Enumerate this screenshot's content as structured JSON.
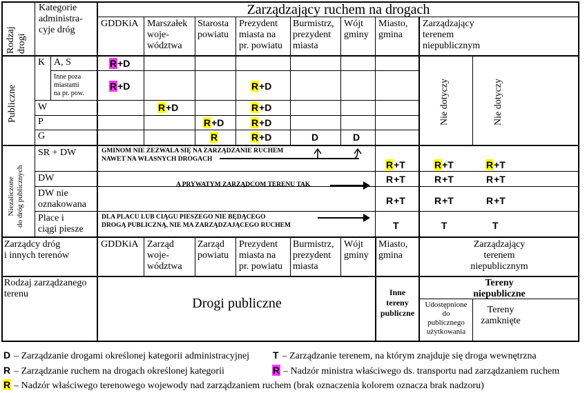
{
  "header": {
    "road_type_label": [
      "Rodzaj",
      "drogi"
    ],
    "admin_category_label": [
      "Kategorie",
      "administra-",
      "cyje dróg"
    ],
    "traffic_manager_title": "Zarządzający ruchem na drogach",
    "columns": {
      "gddkia": "GDDKiA",
      "marszalek": [
        "Marszałek",
        "woje-",
        "wództwa"
      ],
      "starosta": [
        "Starosta",
        "powiatu"
      ],
      "prezydent": [
        "Prezydent",
        "miasta na",
        "pr. powiatu"
      ],
      "burmistrz": [
        "Burmistrz,",
        "prezydent",
        "miasta"
      ],
      "wojt": [
        "Wójt",
        "gminy"
      ],
      "miasto": [
        "Miasto,",
        "gmina"
      ],
      "niepubliczny": [
        "Zarządzający",
        "terenem",
        "niepublicznym"
      ]
    }
  },
  "public_roads": {
    "group_label": "Publiczne",
    "k_label": "K",
    "as_label": "A, S",
    "inne_label": [
      "Inne poza",
      "miastami",
      "na pr. pow."
    ],
    "w_label": "W",
    "p_label": "P",
    "g_label": "G",
    "nie_dotyczy": "Nie dotyczy",
    "code_rd": "+D",
    "code_r_letter": "R",
    "code_d": "D"
  },
  "non_public": {
    "group_label": [
      "Niezaliczone",
      "do dróg publicznych"
    ],
    "sr_dw": "SR + DW",
    "dw": "DW",
    "dw_nie": [
      "DW nie",
      "oznakowana"
    ],
    "place": [
      "Place i",
      "ciągi piesze"
    ],
    "note_gmina": [
      "GMINOM NIE ZEZWALA SIĘ NA ZARZĄDZANIE RUCHEM",
      "NAWET NA WŁASNYCH DROGACH"
    ],
    "note_prywatny": "A PRYWATYM ZARZĄDCOM TERENU TAK",
    "note_plac": [
      "DLA PLACU LUB CIĄGU PIESZEGO NIE BĘDĄCEGO",
      "DROGĄ PUBLICZNĄ, NIE MA ZARZĄDZAJĄCEGO RUCHEM"
    ],
    "code_rt_rest": "+T",
    "code_t": "T"
  },
  "managers_row": {
    "label": [
      "Zarządcy dróg",
      "i innych terenów"
    ],
    "gddkia": "GDDKiA",
    "zarzad_woj": [
      "Zarząd",
      "woje-",
      "wództwa"
    ],
    "zarzad_pow": [
      "Zarząd",
      "powiatu"
    ],
    "prezydent": [
      "Prezydent",
      "miasta na",
      "pr. powiatu"
    ],
    "burmistrz": [
      "Burmistrz,",
      "prezydent",
      "miasta"
    ],
    "wojt": [
      "Wójt",
      "gminy"
    ],
    "miasto": [
      "Miasto,",
      "gmina"
    ],
    "niepubliczny": [
      "Zarządzający",
      "terenem",
      "niepublicznym"
    ]
  },
  "terrain_row": {
    "label": [
      "Rodzaj zarządzanego",
      "terenu"
    ],
    "drogi_publiczne": "Drogi publiczne",
    "inne_tereny": [
      "Inne",
      "tereny",
      "publiczne"
    ],
    "tereny_niepubliczne": [
      "Tereny",
      "niepubliczne"
    ],
    "udostepnione": [
      "Udostępnione",
      "do",
      "publicznego",
      "użytkowania"
    ],
    "zamkniete": [
      "Tereny",
      "zamknięte"
    ]
  },
  "legend": {
    "d_letter": "D",
    "d_text": "– Zarządzanie drogami określonej kategorii administracyjnej",
    "t_letter": "T",
    "t_text": "– Zarządzanie terenem, na którym znajduje się droga wewnętrzna",
    "r_letter": "R",
    "r_text": "– Zarządzanie ruchem na drogach określonej kategorii",
    "rmag_text": "– Nadzór ministra właściwego ds. transportu nad zarządzaniem ruchem",
    "ryel_text": "– Nadzór właściwego terenowego wojewody nad zarządzaniem ruchem (brak oznaczenia kolorem oznacza brak nadzoru)"
  },
  "colors": {
    "magenta": "#ff33ff",
    "yellow": "#ffff00"
  }
}
